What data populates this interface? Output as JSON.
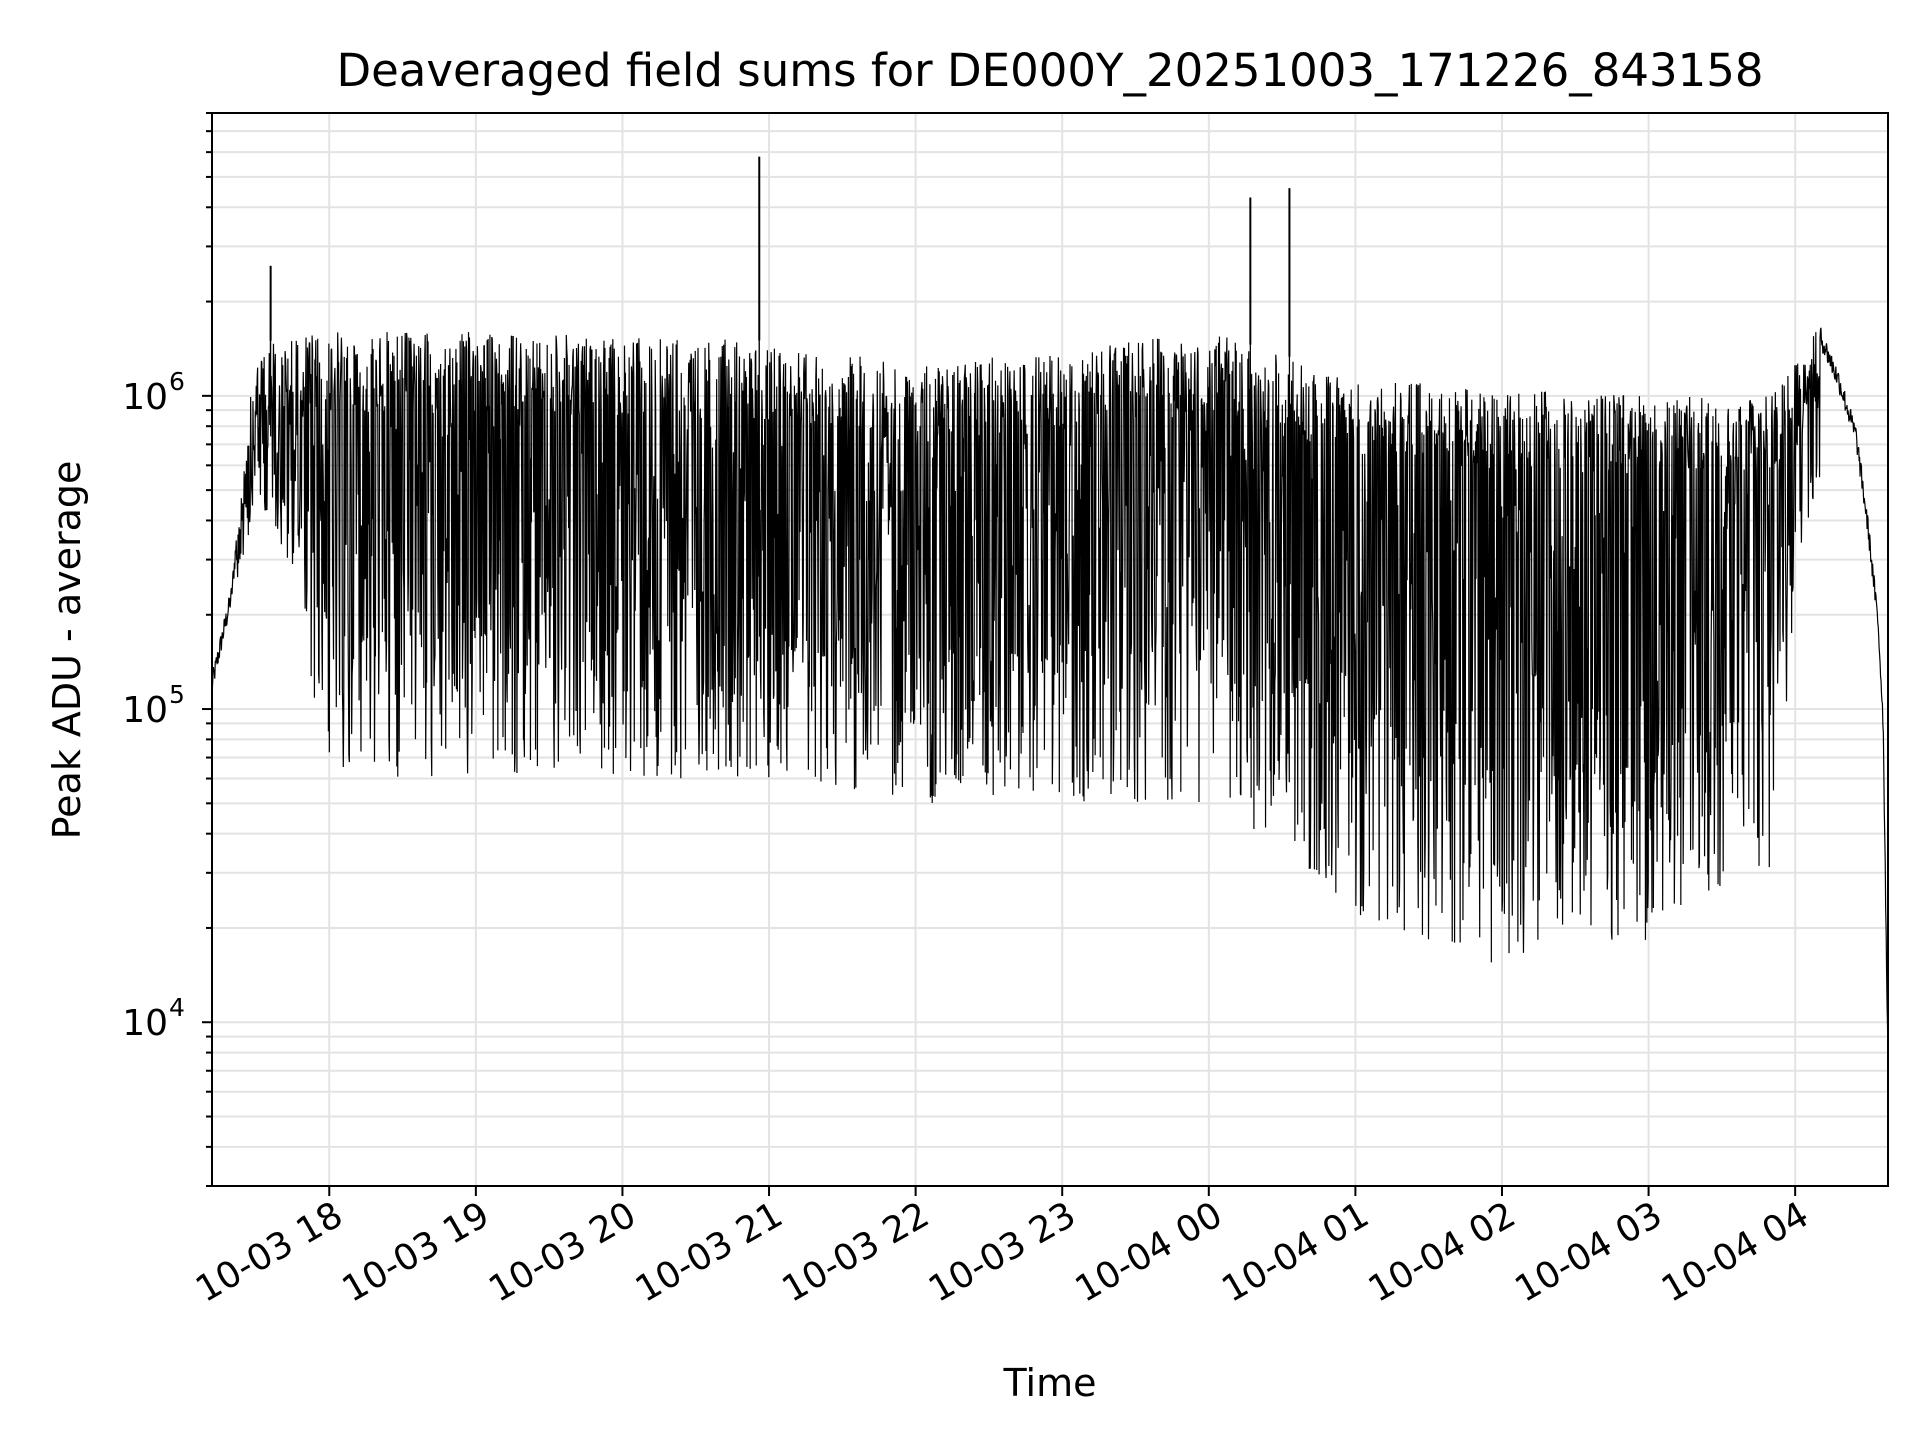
{
  "chart_data": {
    "type": "line",
    "title": "Deaveraged field sums for DE000Y_20251003_171226_843158",
    "xlabel": "Time",
    "ylabel": "Peak ADU - average",
    "yscale": "log",
    "ylim": [
      3000,
      8000000
    ],
    "xlim": [
      "2025-10-03 17:12",
      "2025-10-04 04:38"
    ],
    "grid": true,
    "line_color": "#000000",
    "x_ticks": [
      {
        "value": "2025-10-03 18:00",
        "label": "10-03 18"
      },
      {
        "value": "2025-10-03 19:00",
        "label": "10-03 19"
      },
      {
        "value": "2025-10-03 20:00",
        "label": "10-03 20"
      },
      {
        "value": "2025-10-03 21:00",
        "label": "10-03 21"
      },
      {
        "value": "2025-10-03 22:00",
        "label": "10-03 22"
      },
      {
        "value": "2025-10-03 23:00",
        "label": "10-03 23"
      },
      {
        "value": "2025-10-04 00:00",
        "label": "10-04 00"
      },
      {
        "value": "2025-10-04 01:00",
        "label": "10-04 01"
      },
      {
        "value": "2025-10-04 02:00",
        "label": "10-04 02"
      },
      {
        "value": "2025-10-04 03:00",
        "label": "10-04 03"
      },
      {
        "value": "2025-10-04 04:00",
        "label": "10-04 04"
      }
    ],
    "y_ticks": [
      {
        "value": 10000,
        "base": "10",
        "exp": "4"
      },
      {
        "value": 100000,
        "base": "10",
        "exp": "5"
      },
      {
        "value": 1000000,
        "base": "10",
        "exp": "6"
      }
    ],
    "series": [
      {
        "upper_envelope": {
          "x": [
            "2025-10-03 17:12",
            "2025-10-03 17:20",
            "2025-10-03 17:26",
            "2025-10-03 17:30",
            "2025-10-03 17:36",
            "2025-10-03 18:00",
            "2025-10-03 19:00",
            "2025-10-03 20:00",
            "2025-10-03 21:00",
            "2025-10-03 22:00",
            "2025-10-03 23:00",
            "2025-10-04 00:00",
            "2025-10-04 01:00",
            "2025-10-04 02:00",
            "2025-10-04 03:00",
            "2025-10-04 03:50",
            "2025-10-04 04:05",
            "2025-10-04 04:10",
            "2025-10-04 04:18",
            "2025-10-04 04:25",
            "2025-10-04 04:30",
            "2025-10-04 04:34",
            "2025-10-04 04:36",
            "2025-10-04 04:38"
          ],
          "y": [
            130000,
            250000,
            800000,
            1300000,
            1500000,
            1600000,
            1600000,
            1550000,
            1500000,
            1250000,
            1400000,
            1600000,
            1150000,
            1050000,
            1000000,
            1000000,
            1450000,
            1700000,
            1200000,
            800000,
            400000,
            200000,
            100000,
            8000
          ]
        },
        "lower_envelope": {
          "x": [
            "2025-10-03 17:20",
            "2025-10-03 17:30",
            "2025-10-03 17:45",
            "2025-10-03 18:00",
            "2025-10-03 19:00",
            "2025-10-03 20:00",
            "2025-10-03 21:00",
            "2025-10-03 22:00",
            "2025-10-03 23:00",
            "2025-10-04 00:00",
            "2025-10-04 00:40",
            "2025-10-04 01:00",
            "2025-10-04 02:00",
            "2025-10-04 03:00",
            "2025-10-04 03:50",
            "2025-10-04 04:05"
          ],
          "y": [
            200000,
            450000,
            250000,
            60000,
            60000,
            60000,
            60000,
            50000,
            50000,
            50000,
            30000,
            22000,
            15000,
            18000,
            30000,
            400000
          ]
        },
        "spikes": [
          {
            "x": "2025-10-03 17:36",
            "y": 2600000
          },
          {
            "x": "2025-10-03 20:56",
            "y": 5800000
          },
          {
            "x": "2025-10-04 00:17",
            "y": 4300000
          },
          {
            "x": "2025-10-04 00:33",
            "y": 4600000
          }
        ]
      }
    ]
  }
}
